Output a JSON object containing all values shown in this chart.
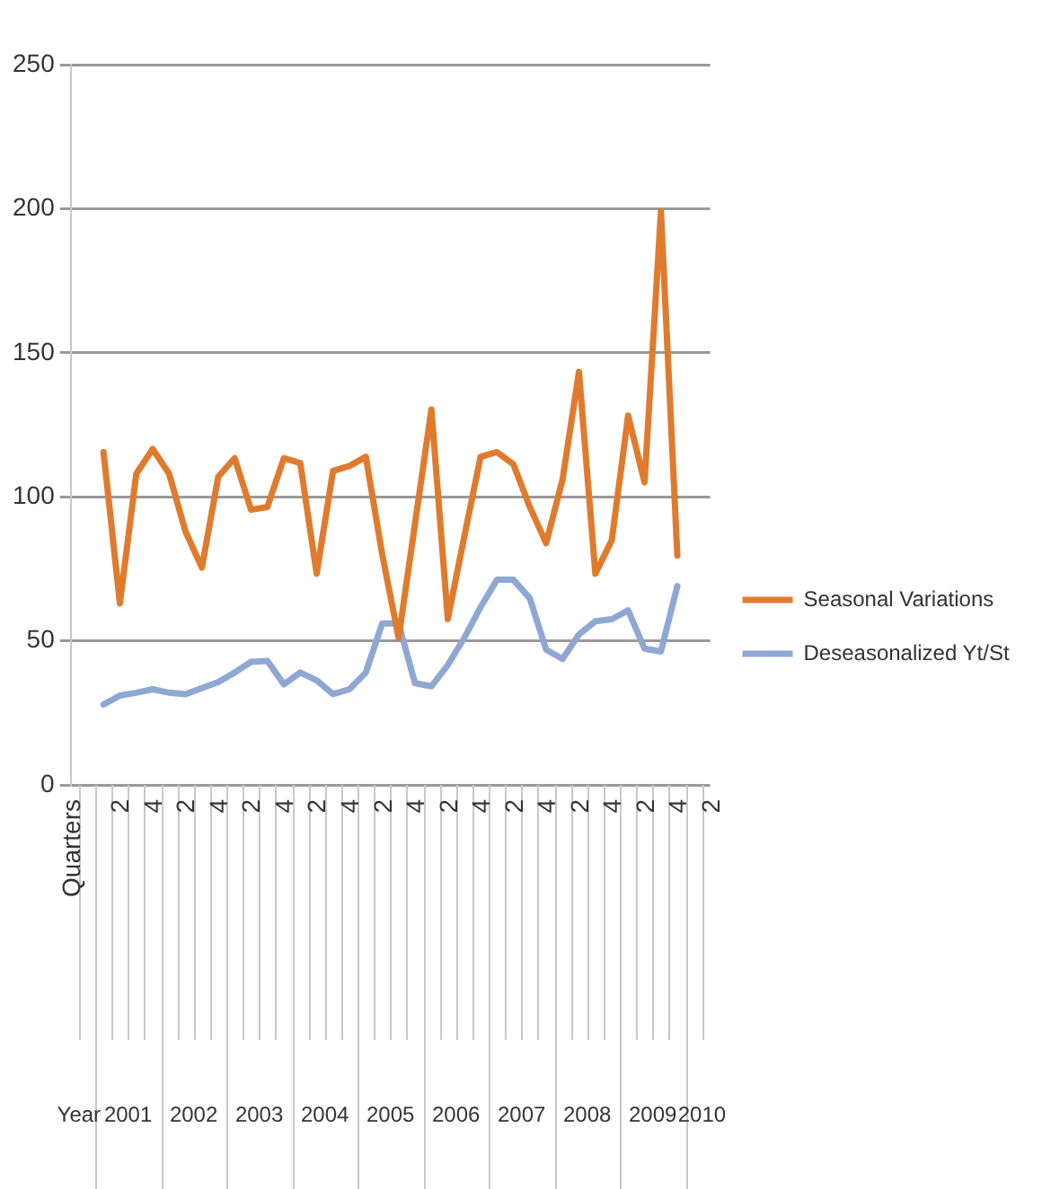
{
  "chart_data": {
    "type": "line",
    "categories": [
      "Quarters",
      null,
      null,
      "2",
      null,
      "4",
      null,
      "2",
      null,
      "4",
      null,
      "2",
      null,
      "4",
      null,
      "2",
      null,
      "4",
      null,
      "2",
      null,
      "4",
      null,
      "2",
      null,
      "4",
      null,
      "2",
      null,
      "4",
      null,
      "2",
      null,
      "4",
      null,
      "2",
      null,
      "4",
      null,
      "2"
    ],
    "series": [
      {
        "name": "Seasonal Variations",
        "color": "#e07b2e",
        "values": [
          null,
          null,
          115.5,
          63,
          108,
          116.6,
          108,
          88,
          75.4,
          107,
          113.4,
          95.5,
          96.5,
          113.4,
          111.7,
          73.3,
          109,
          110.7,
          113.9,
          80,
          51,
          90.6,
          130.3,
          57.5,
          86,
          113.9,
          115.5,
          111.3,
          96.5,
          83.9,
          106,
          143.4,
          73.3,
          84.9,
          128.2,
          105,
          199,
          79.6,
          null,
          null
        ]
      },
      {
        "name": "Deseasonalized Yt/St",
        "color": "#8ea8d3",
        "values": [
          null,
          null,
          27.9,
          31,
          32,
          33.2,
          32,
          31.5,
          33.6,
          35.7,
          39,
          42.7,
          43,
          34.9,
          39,
          36.3,
          31.5,
          33.2,
          39,
          56,
          56,
          35.3,
          34.2,
          41.6,
          51,
          61.7,
          71.2,
          71.2,
          64.8,
          46.9,
          43.7,
          52.2,
          56.8,
          57.5,
          60.6,
          47.3,
          46.3,
          69,
          null,
          null
        ]
      }
    ],
    "ylim": [
      0,
      250
    ],
    "yticks": [
      0,
      50,
      100,
      150,
      200,
      250
    ],
    "grid": "y",
    "legend": "right",
    "marker": "none",
    "annotations": [
      "Year",
      "2001",
      "2002",
      "2003",
      "2004",
      "2005",
      "2006",
      "2007",
      "2008",
      "2009",
      "2010"
    ]
  }
}
